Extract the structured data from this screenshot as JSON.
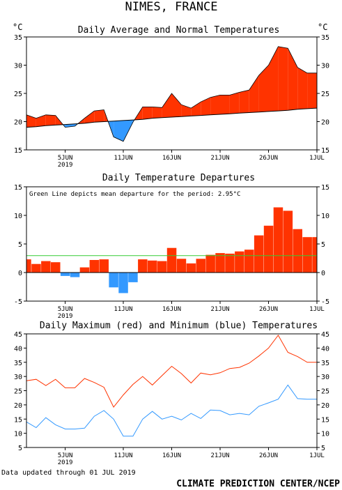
{
  "page": {
    "main_title": "NIMES, FRANCE",
    "footer_left": "Data updated through 01 JUL 2019",
    "footer_right": "CLIMATE PREDICTION CENTER/NCEP"
  },
  "x_ticks": [
    {
      "label": "5JUN",
      "sub": "2019",
      "day": 5
    },
    {
      "label": "11JUN",
      "sub": "",
      "day": 11
    },
    {
      "label": "16JUN",
      "sub": "",
      "day": 16
    },
    {
      "label": "21JUN",
      "sub": "",
      "day": 21
    },
    {
      "label": "26JUN",
      "sub": "",
      "day": 26
    },
    {
      "label": "1JUL",
      "sub": "",
      "day": 31
    }
  ],
  "colors": {
    "warm": "#ff3300",
    "cold": "#3399ff",
    "normal_line": "#000000",
    "mean_line": "#33cc33",
    "max_line": "#ff3300",
    "min_line": "#3399ff"
  },
  "chart_data": [
    {
      "type": "area",
      "title": "Daily Average and Normal Temperatures",
      "y_unit_left": "°C",
      "y_unit_right": "°C",
      "ylim": [
        15,
        35
      ],
      "yticks": [
        15,
        20,
        25,
        30,
        35
      ],
      "x_days": [
        1,
        2,
        3,
        4,
        5,
        6,
        7,
        8,
        9,
        10,
        11,
        12,
        13,
        14,
        15,
        16,
        17,
        18,
        19,
        20,
        21,
        22,
        23,
        24,
        25,
        26,
        27,
        28,
        29,
        30,
        31
      ],
      "series": [
        {
          "name": "",
          "role": "average",
          "values": [
            21.2,
            20.6,
            21.2,
            21.1,
            19.0,
            19.2,
            20.6,
            21.9,
            22.1,
            17.3,
            16.5,
            19.9,
            22.6,
            22.6,
            22.5,
            25.0,
            23.0,
            22.4,
            23.5,
            24.3,
            24.7,
            24.7,
            25.2,
            25.6,
            28.2,
            30.0,
            33.3,
            33.0,
            29.6,
            28.6,
            28.6
          ]
        },
        {
          "name": "",
          "role": "normal",
          "values": [
            19.0,
            19.1,
            19.3,
            19.4,
            19.5,
            19.6,
            19.7,
            19.9,
            20.0,
            20.1,
            20.2,
            20.3,
            20.4,
            20.6,
            20.7,
            20.8,
            20.9,
            21.0,
            21.1,
            21.2,
            21.3,
            21.4,
            21.5,
            21.6,
            21.7,
            21.8,
            21.9,
            22.0,
            22.2,
            22.3,
            22.4
          ]
        }
      ]
    },
    {
      "type": "bar",
      "title": "Daily Temperature Departures",
      "annotation": "Green Line depicts mean departure for the period: 2.95°C",
      "mean_departure": 2.95,
      "ylim": [
        -5,
        15
      ],
      "yticks": [
        -5,
        0,
        5,
        10,
        15
      ],
      "x_days": [
        1,
        2,
        3,
        4,
        5,
        6,
        7,
        8,
        9,
        10,
        11,
        12,
        13,
        14,
        15,
        16,
        17,
        18,
        19,
        20,
        21,
        22,
        23,
        24,
        25,
        26,
        27,
        28,
        29,
        30,
        31
      ],
      "values": [
        2.3,
        1.5,
        2.0,
        1.8,
        -0.6,
        -0.8,
        0.9,
        2.2,
        2.3,
        -2.6,
        -3.6,
        -1.7,
        2.3,
        2.1,
        2.0,
        4.3,
        2.4,
        1.6,
        2.4,
        3.1,
        3.4,
        3.3,
        3.7,
        4.0,
        6.5,
        8.2,
        11.4,
        10.8,
        7.6,
        6.2,
        6.2
      ]
    },
    {
      "type": "line",
      "title": "Daily Maximum (red) and Minimum (blue) Temperatures",
      "ylim": [
        5,
        45
      ],
      "yticks": [
        5,
        10,
        15,
        20,
        25,
        30,
        35,
        40,
        45
      ],
      "x_days": [
        1,
        2,
        3,
        4,
        5,
        6,
        7,
        8,
        9,
        10,
        11,
        12,
        13,
        14,
        15,
        16,
        17,
        18,
        19,
        20,
        21,
        22,
        23,
        24,
        25,
        26,
        27,
        28,
        29,
        30,
        31
      ],
      "series": [
        {
          "name": "",
          "role": "max",
          "values": [
            28.5,
            29.0,
            26.8,
            29.0,
            26.0,
            26.0,
            29.3,
            27.9,
            26.2,
            19.2,
            23.5,
            27.2,
            30.0,
            27.0,
            30.3,
            33.6,
            31.0,
            27.7,
            31.2,
            30.6,
            31.3,
            32.8,
            33.2,
            34.7,
            37.2,
            40.0,
            44.5,
            38.5,
            37.0,
            35.0,
            35.0
          ]
        },
        {
          "name": "",
          "role": "min",
          "values": [
            14.0,
            12.0,
            15.5,
            13.0,
            11.5,
            11.5,
            11.8,
            16.0,
            18.0,
            15.0,
            9.0,
            9.0,
            15.0,
            17.7,
            15.0,
            16.0,
            14.7,
            17.0,
            15.2,
            18.2,
            18.0,
            16.5,
            17.0,
            16.5,
            19.5,
            20.7,
            22.0,
            27.0,
            22.2,
            22.0,
            22.0
          ]
        }
      ]
    }
  ]
}
